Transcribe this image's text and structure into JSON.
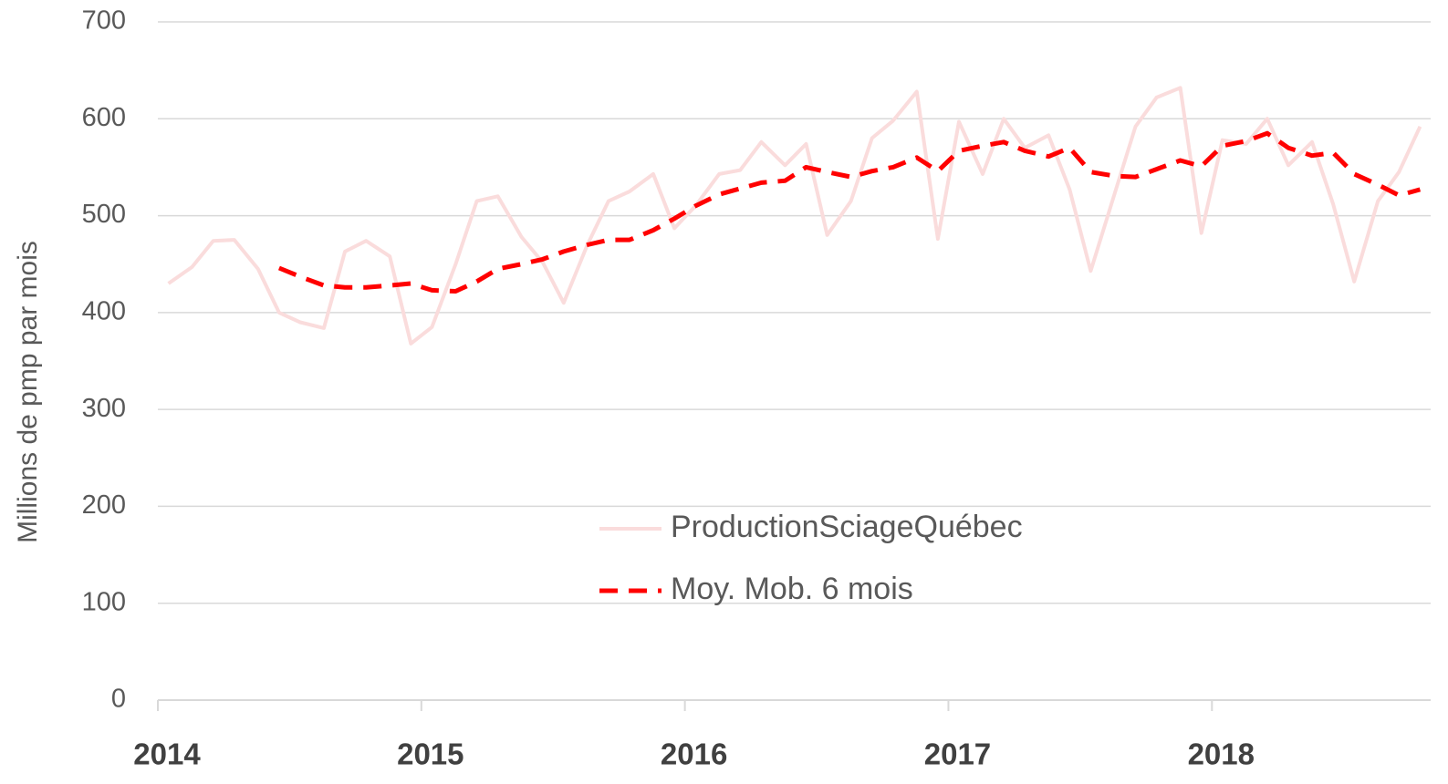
{
  "chart_data": {
    "type": "line",
    "y_label": "Millions de pmp par mois",
    "x": [
      2014.04,
      2014.13,
      2014.21,
      2014.29,
      2014.38,
      2014.46,
      2014.54,
      2014.63,
      2014.71,
      2014.79,
      2014.88,
      2014.96,
      2015.04,
      2015.13,
      2015.21,
      2015.29,
      2015.38,
      2015.46,
      2015.54,
      2015.63,
      2015.71,
      2015.79,
      2015.88,
      2015.96,
      2016.04,
      2016.13,
      2016.21,
      2016.29,
      2016.38,
      2016.46,
      2016.54,
      2016.63,
      2016.71,
      2016.79,
      2016.88,
      2016.96,
      2017.04,
      2017.13,
      2017.21,
      2017.29,
      2017.38,
      2017.46,
      2017.54,
      2017.63,
      2017.71,
      2017.79,
      2017.88,
      2017.96,
      2018.04,
      2018.13,
      2018.21,
      2018.29,
      2018.38,
      2018.46,
      2018.54,
      2018.63,
      2018.71,
      2018.79
    ],
    "series": [
      {
        "name": "ProductionSciageQuébec",
        "color": "#fadcdc",
        "dash": false,
        "values": [
          430,
          447,
          474,
          475,
          445,
          400,
          390,
          384,
          463,
          474,
          458,
          368,
          385,
          450,
          515,
          520,
          478,
          452,
          410,
          470,
          515,
          525,
          543,
          487,
          510,
          543,
          547,
          576,
          552,
          574,
          480,
          515,
          580,
          598,
          628,
          476,
          597,
          543,
          600,
          570,
          583,
          527,
          443,
          522,
          592,
          622,
          632,
          482,
          578,
          574,
          600,
          552,
          576,
          512,
          432,
          515,
          545,
          592
        ]
      },
      {
        "name": "Moy. Mob. 6 mois",
        "color": "#ff0000",
        "dash": true,
        "values": [
          null,
          null,
          null,
          null,
          null,
          446,
          437,
          428,
          426,
          426,
          428,
          430,
          423,
          422,
          432,
          445,
          450,
          455,
          463,
          470,
          475,
          475,
          485,
          497,
          510,
          522,
          528,
          534,
          536,
          550,
          545,
          540,
          546,
          550,
          560,
          546,
          567,
          572,
          576,
          567,
          561,
          570,
          545,
          541,
          540,
          548,
          557,
          551,
          572,
          577,
          585,
          570,
          562,
          565,
          543,
          532,
          521,
          527
        ]
      }
    ],
    "xlim": [
      2014,
      2018.83
    ],
    "xticks": [
      2014,
      2015,
      2016,
      2017,
      2018
    ],
    "ylim": [
      0,
      700
    ],
    "yticks": [
      0,
      100,
      200,
      300,
      400,
      500,
      600,
      700
    ],
    "grid": true
  }
}
